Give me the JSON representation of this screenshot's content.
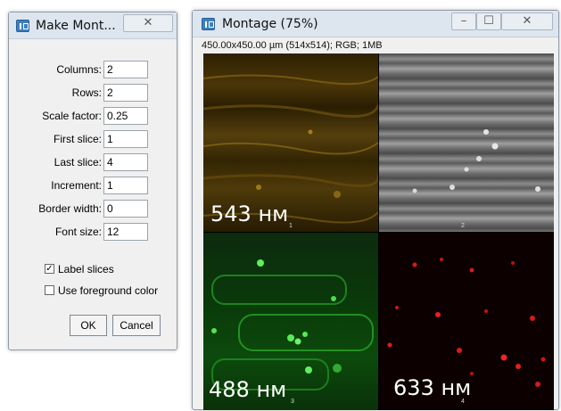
{
  "make_montage": {
    "title": "Make Mont...",
    "fields": [
      {
        "label": "Columns:",
        "value": "2"
      },
      {
        "label": "Rows:",
        "value": "2"
      },
      {
        "label": "Scale factor:",
        "value": "0.25"
      },
      {
        "label": "First slice:",
        "value": "1"
      },
      {
        "label": "Last slice:",
        "value": "4"
      },
      {
        "label": "Increment:",
        "value": "1"
      },
      {
        "label": "Border width:",
        "value": "0"
      },
      {
        "label": "Font size:",
        "value": "12"
      }
    ],
    "checkboxes": [
      {
        "label": "Label slices",
        "checked": true
      },
      {
        "label": "Use foreground color",
        "checked": false
      }
    ],
    "ok_label": "OK",
    "cancel_label": "Cancel"
  },
  "montage": {
    "title": "Montage (75%)",
    "info": "450.00x450.00 µm (514x514); RGB; 1MB",
    "tiles": [
      {
        "index": "1",
        "wavelength": "543 нм",
        "color": "#b48a1c"
      },
      {
        "index": "2",
        "wavelength": "",
        "color": "#bdbdbd"
      },
      {
        "index": "3",
        "wavelength": "488 нм",
        "color": "#2fbf2f"
      },
      {
        "index": "4",
        "wavelength": "633 нм",
        "color": "#d41a1a"
      }
    ]
  },
  "controls": {
    "minimize": "–",
    "maximize": "☐",
    "close": "✕"
  }
}
